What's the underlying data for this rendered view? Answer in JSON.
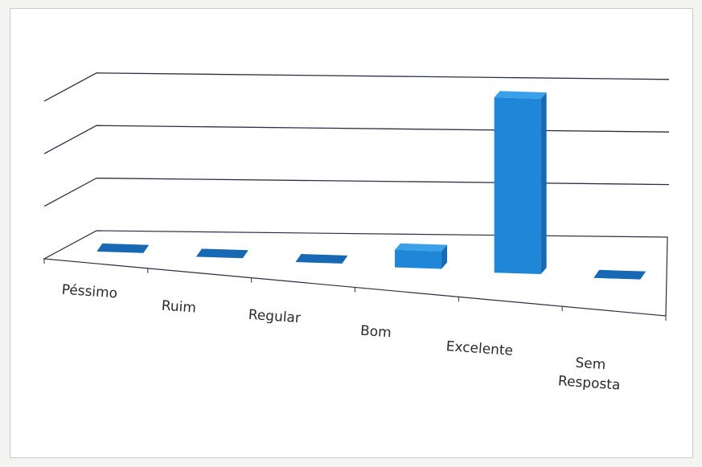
{
  "chart_data": {
    "type": "bar",
    "categories": [
      "Péssimo",
      "Ruim",
      "Regular",
      "Bom",
      "Excelente",
      "Sem Resposta"
    ],
    "category_lines": [
      [
        "Péssimo"
      ],
      [
        "Ruim"
      ],
      [
        "Regular"
      ],
      [
        "Bom"
      ],
      [
        "Excelente"
      ],
      [
        "Sem",
        "Resposta"
      ]
    ],
    "values": [
      0,
      0,
      0,
      1,
      10,
      0
    ],
    "ylim": [
      0,
      13
    ],
    "title": "",
    "xlabel": "",
    "ylabel": "",
    "grid": true,
    "legend": "none",
    "colors": {
      "bar_front": "#1f86d8",
      "bar_side": "#1769b3",
      "bar_top": "#3aa0ea",
      "grid": "#2b2f45",
      "floor": "#ffffff"
    }
  }
}
